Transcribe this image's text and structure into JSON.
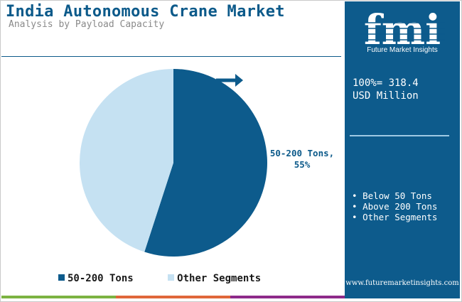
{
  "header": {
    "title": "India Autonomous Crane Market",
    "subtitle": "Analysis by Payload Capacity"
  },
  "sidebar": {
    "logo_text": "fmi",
    "logo_caption": "Future Market Insights",
    "total_line1": "100%= 318.4",
    "total_line2": "USD Million",
    "other_segments": [
      "Below 50 Tons",
      "Above 200 Tons",
      "Other Segments"
    ],
    "website": "www.futuremarketinsights.com"
  },
  "chart_data": {
    "type": "pie",
    "total": 318.4,
    "unit": "USD Million",
    "slices": [
      {
        "name": "50-200 Tons",
        "value": 55,
        "color": "#0d5b8c",
        "label_text": "50-200 Tons,",
        "label_value": "55%"
      },
      {
        "name": "Other Segments",
        "value": 45,
        "color": "#c5e1f2"
      }
    ],
    "legend": [
      {
        "name": "50-200 Tons",
        "color": "#0d5b8c"
      },
      {
        "name": "Other Segments",
        "color": "#c5e1f2"
      }
    ],
    "legend_position": "bottom"
  },
  "colors": {
    "brand": "#0d5b8c",
    "light": "#c5e1f2",
    "bottom_bar": [
      "#7cb342",
      "#e0673a",
      "#8e2a8a"
    ]
  }
}
